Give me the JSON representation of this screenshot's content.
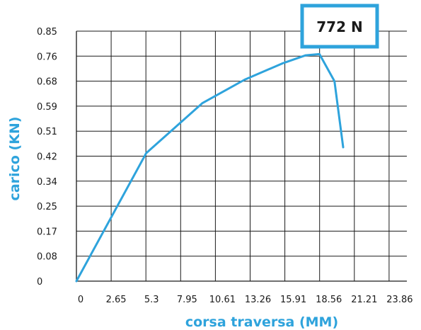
{
  "chart_data": {
    "type": "line",
    "xlabel": "corsa traversa (MM)",
    "ylabel": "carico (KN)",
    "x_ticks": [
      "0",
      "2.65",
      "5.3",
      "7.95",
      "10.61",
      "13.26",
      "15.91",
      "18.56",
      "21.21",
      "23.86"
    ],
    "y_ticks": [
      "0",
      "0.08",
      "0.17",
      "0.25",
      "0.34",
      "0.42",
      "0.51",
      "0.59",
      "0.68",
      "0.76",
      "0.85"
    ],
    "xlim": [
      0,
      26.51
    ],
    "ylim": [
      0,
      0.85
    ],
    "grid": true,
    "callout": "772 N",
    "series": [
      {
        "color": "#2ea3dc",
        "x": [
          0,
          5.6,
          10.1,
          13.5,
          16.5,
          18.4,
          19.5,
          20.7,
          21.4
        ],
        "y": [
          0,
          0.435,
          0.605,
          0.685,
          0.74,
          0.768,
          0.772,
          0.68,
          0.455
        ]
      }
    ]
  }
}
